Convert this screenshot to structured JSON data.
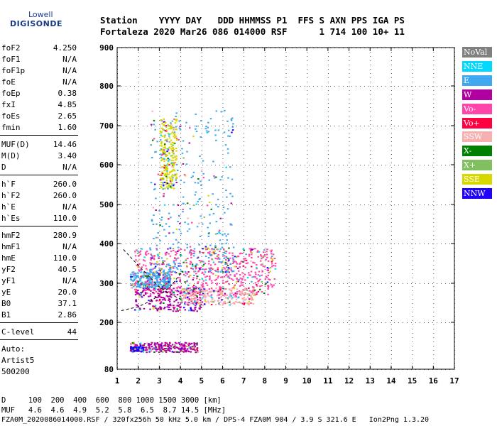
{
  "logo": {
    "line1": "Lowell",
    "line2": "DIGISONDE"
  },
  "header": {
    "row1": "Station    YYYY DAY   DDD HHMMSS P1  FFS S AXN PPS IGA PS",
    "row2": "Fortaleza 2020 Mar26 086 014000 RSF      1 714 100 10+ 11"
  },
  "params": [
    {
      "name": "foF2",
      "value": "4.250"
    },
    {
      "name": "foF1",
      "value": "N/A"
    },
    {
      "name": "foF1p",
      "value": "N/A"
    },
    {
      "name": "foE",
      "value": "N/A"
    },
    {
      "name": "foEp",
      "value": "0.38"
    },
    {
      "name": "fxI",
      "value": "4.85"
    },
    {
      "name": "foEs",
      "value": "2.65"
    },
    {
      "name": "fmin",
      "value": "1.60"
    },
    {
      "name": "MUF(D)",
      "value": "14.46"
    },
    {
      "name": "M(D)",
      "value": "3.40"
    },
    {
      "name": "D",
      "value": "N/A"
    },
    {
      "name": "h`F",
      "value": "260.0"
    },
    {
      "name": "h`F2",
      "value": "260.0"
    },
    {
      "name": "h`E",
      "value": "N/A"
    },
    {
      "name": "h`Es",
      "value": "110.0"
    },
    {
      "name": "hmF2",
      "value": "280.9"
    },
    {
      "name": "hmF1",
      "value": "N/A"
    },
    {
      "name": "hmE",
      "value": "110.0"
    },
    {
      "name": "yF2",
      "value": "40.5"
    },
    {
      "name": "yF1",
      "value": "N/A"
    },
    {
      "name": "yE",
      "value": "20.0"
    },
    {
      "name": "B0",
      "value": "37.1"
    },
    {
      "name": "B1",
      "value": "2.86"
    },
    {
      "name": "C-level",
      "value": "44"
    }
  ],
  "autoscale": {
    "line1": "Auto:",
    "line2": "Artist5",
    "line3": "500200"
  },
  "legend": [
    {
      "label": "NoVal",
      "color": "#808080"
    },
    {
      "label": "NNE",
      "color": "#00d8ff"
    },
    {
      "label": "E",
      "color": "#3fa8f0"
    },
    {
      "label": "W",
      "color": "#b000a0"
    },
    {
      "label": "Vo-",
      "color": "#ff44aa"
    },
    {
      "label": "Vo+",
      "color": "#ff0040"
    },
    {
      "label": "SSW",
      "color": "#f7b0b0"
    },
    {
      "label": "X-",
      "color": "#008000"
    },
    {
      "label": "X+",
      "color": "#80c060"
    },
    {
      "label": "SSE",
      "color": "#d8d800"
    },
    {
      "label": "NNW",
      "color": "#2000ff"
    }
  ],
  "bottom": {
    "d_row": "D     100  200  400  600  800 1000 1500 3000 [km]",
    "muf_row": "MUF   4.6  4.6  4.9  5.2  5.8  6.5  8.7 14.5 [MHz]",
    "info_row": "FZA0M_2020086014000.RSF / 320fx256h 50 kHz 5.0 km / DPS-4 FZA0M 904 / 3.9 S 321.6 E   Ion2Png 1.3.20"
  },
  "chart_data": {
    "type": "scatter",
    "xlim": [
      1,
      17
    ],
    "ylim": [
      80,
      900
    ],
    "x_ticks": [
      "1",
      "2",
      "3",
      "4",
      "5",
      "6",
      "7",
      "8",
      "9",
      "10",
      "11",
      "12",
      "13",
      "14",
      "15",
      "16",
      "17"
    ],
    "y_ticks": [
      "80",
      "200",
      "300",
      "400",
      "500",
      "600",
      "700",
      "800",
      "900"
    ],
    "y_tick_values": [
      80,
      200,
      300,
      400,
      500,
      600,
      700,
      800,
      900
    ],
    "grid": true,
    "legend_position": "right",
    "regions": [
      {
        "name": "F-trace main O",
        "x": [
          1.8,
          8.5
        ],
        "y": [
          270,
          390
        ],
        "color": "#ff44aa"
      },
      {
        "name": "F-trace lower O",
        "x": [
          1.8,
          5.0
        ],
        "y": [
          230,
          290
        ],
        "color": "#b000a0"
      },
      {
        "name": "SSW echoes",
        "x": [
          4.0,
          7.5
        ],
        "y": [
          245,
          290
        ],
        "color": "#f7b0b0"
      },
      {
        "name": "E spread",
        "x": [
          1.6,
          3.5
        ],
        "y": [
          290,
          330
        ],
        "color": "#3fa8f0"
      },
      {
        "name": "Spread F vertical",
        "x": [
          2.5,
          6.5
        ],
        "y": [
          330,
          740
        ],
        "color": "#3fa8f0"
      },
      {
        "name": "SSE cluster",
        "x": [
          3.0,
          3.8
        ],
        "y": [
          540,
          720
        ],
        "color": "#d8d800"
      },
      {
        "name": "Es layer",
        "x": [
          1.6,
          4.8
        ],
        "y": [
          125,
          150
        ],
        "color": "#b000a0"
      },
      {
        "name": "Es NNW",
        "x": [
          1.6,
          2.2
        ],
        "y": [
          128,
          138
        ],
        "color": "#2000ff"
      }
    ],
    "curves": [
      {
        "name": "X trace",
        "color": "#000000",
        "dashed": true,
        "points": [
          [
            1.3,
            385
          ],
          [
            2.0,
            345
          ],
          [
            2.5,
            318
          ],
          [
            3.0,
            290
          ],
          [
            3.6,
            270
          ],
          [
            4.0,
            260
          ]
        ]
      },
      {
        "name": "O profile",
        "color": "#000000",
        "dashed": true,
        "points": [
          [
            1.2,
            230
          ],
          [
            2.0,
            240
          ],
          [
            2.6,
            255
          ],
          [
            3.0,
            270
          ],
          [
            3.5,
            290
          ],
          [
            4.1,
            330
          ]
        ]
      }
    ]
  }
}
